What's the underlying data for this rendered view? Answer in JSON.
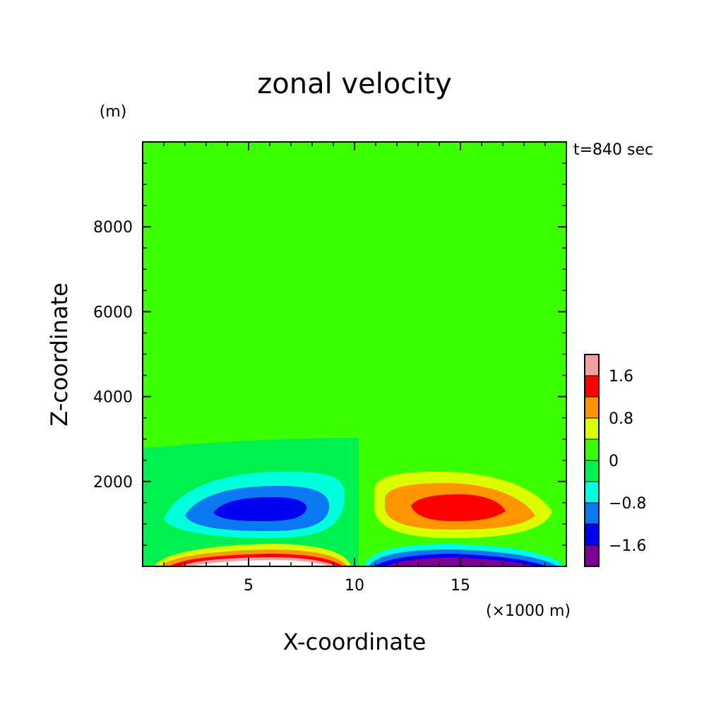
{
  "chart_data": {
    "type": "heatmap",
    "title": "zonal velocity",
    "time_label": "t=840 sec",
    "xlabel": "X-coordinate",
    "ylabel": "Z-coordinate",
    "y_unit": "(m)",
    "x_unit": "(×1000 m)",
    "xlim": [
      0,
      20
    ],
    "ylim": [
      0,
      10000
    ],
    "x_ticks": [
      5,
      10,
      15
    ],
    "y_ticks": [
      2000,
      4000,
      6000,
      8000
    ],
    "grid": false,
    "colorbar": {
      "levels": [
        {
          "lo": -2.4,
          "hi": -1.6,
          "color": "#7a0096"
        },
        {
          "lo": -1.6,
          "hi": -1.2,
          "color": "#0000f0"
        },
        {
          "lo": -1.2,
          "hi": -0.8,
          "color": "#0a78f0"
        },
        {
          "lo": -0.8,
          "hi": -0.4,
          "color": "#00ffdc"
        },
        {
          "lo": -0.4,
          "hi": 0.0,
          "color": "#00f050"
        },
        {
          "lo": 0.0,
          "hi": 0.4,
          "color": "#3cff00"
        },
        {
          "lo": 0.4,
          "hi": 0.8,
          "color": "#dcff00"
        },
        {
          "lo": 0.8,
          "hi": 1.2,
          "color": "#ff9600"
        },
        {
          "lo": 1.2,
          "hi": 1.6,
          "color": "#ff0000"
        },
        {
          "lo": 1.6,
          "hi": 2.0,
          "color": "#f5a0a0"
        }
      ],
      "labels": [
        {
          "value": -1.6,
          "text": "−1.6"
        },
        {
          "value": -0.8,
          "text": "−0.8"
        },
        {
          "value": 0,
          "text": "0"
        },
        {
          "value": 0.8,
          "text": "0.8"
        },
        {
          "value": 1.6,
          "text": "1.6"
        }
      ]
    },
    "regions": [
      {
        "level": 0.2,
        "note": "upper layer (left)"
      },
      {
        "level": -0.2,
        "note": "lower layer (left)"
      },
      {
        "level": -0.6,
        "note": "left cell ring 1"
      },
      {
        "level": -1.0,
        "note": "left cell ring 2"
      },
      {
        "level": -1.4,
        "note": "left cell core"
      },
      {
        "level": 0.6,
        "note": "right cell ring 1"
      },
      {
        "level": 1.0,
        "note": "right cell ring 2"
      },
      {
        "level": 1.4,
        "note": "right cell core"
      },
      {
        "level": 0.6,
        "note": "surface jet left"
      },
      {
        "level": -0.6,
        "note": "surface jet right"
      }
    ]
  }
}
